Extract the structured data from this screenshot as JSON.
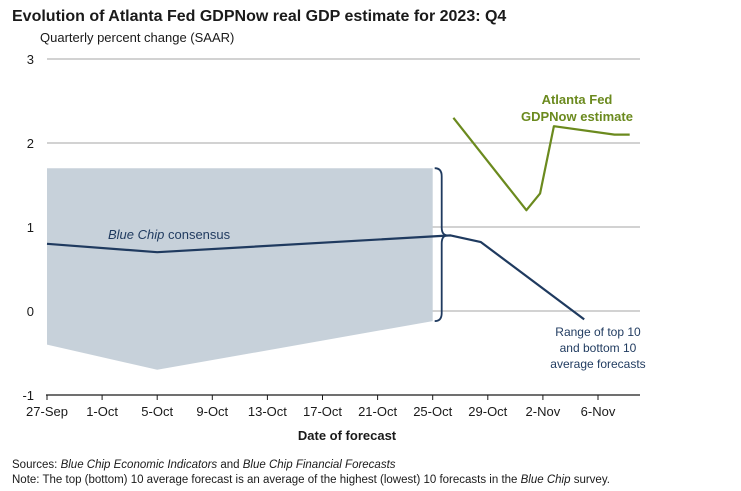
{
  "chart_data": {
    "type": "line",
    "title": "Evolution of Atlanta Fed GDPNow real GDP estimate for 2023: Q4",
    "subtitle": "Quarterly percent change (SAAR)",
    "xlabel": "Date of forecast",
    "ylabel": "",
    "ylim": [
      -1,
      3
    ],
    "y_ticks": [
      "-1",
      "0",
      "1",
      "2",
      "3"
    ],
    "x_ticks": [
      "27-Sep",
      "1-Oct",
      "5-Oct",
      "9-Oct",
      "13-Oct",
      "17-Oct",
      "21-Oct",
      "25-Oct",
      "29-Oct",
      "2-Nov",
      "6-Nov"
    ],
    "x_tick_days": [
      0,
      4,
      8,
      12,
      16,
      20,
      24,
      28,
      32,
      36,
      40
    ],
    "xlim_days": [
      0,
      43
    ],
    "grid": true,
    "series": [
      {
        "name": "Atlanta Fed GDPNow estimate",
        "color": "#6b8a1e",
        "points": [
          {
            "day": 29.5,
            "value": 2.3
          },
          {
            "day": 34.8,
            "value": 1.2
          },
          {
            "day": 35.8,
            "value": 1.4
          },
          {
            "day": 36.8,
            "value": 2.2
          },
          {
            "day": 41.2,
            "value": 2.1
          },
          {
            "day": 42.3,
            "value": 2.1
          }
        ]
      },
      {
        "name": "Blue Chip consensus",
        "color": "#1f3a5f",
        "points": [
          {
            "day": 0,
            "value": 0.8
          },
          {
            "day": 8,
            "value": 0.7
          },
          {
            "day": 29.3,
            "value": 0.9
          },
          {
            "day": 31.5,
            "value": 0.82
          },
          {
            "day": 39,
            "value": -0.1
          }
        ]
      }
    ],
    "range_band": {
      "name": "Range of top 10 and bottom 10 average forecasts",
      "color": "#c7d1da",
      "upper": [
        {
          "day": 0,
          "value": 1.7
        },
        {
          "day": 28,
          "value": 1.7
        }
      ],
      "lower": [
        {
          "day": 0,
          "value": -0.4
        },
        {
          "day": 8,
          "value": -0.7
        },
        {
          "day": 28,
          "value": -0.12
        }
      ]
    },
    "annotations": {
      "gdpnow_line1": "Atlanta Fed",
      "gdpnow_line2": "GDPNow estimate",
      "bluechip_italic": "Blue Chip",
      "bluechip_rest": " consensus",
      "range_line1": "Range of top 10",
      "range_line2": "and bottom 10",
      "range_line3": "average forecasts"
    }
  },
  "footer": {
    "sources_label": "Sources: ",
    "sources_italic1": "Blue Chip Economic Indicators",
    "sources_mid": " and ",
    "sources_italic2": "Blue Chip Financial Forecasts",
    "note_label": "Note: ",
    "note_text_a": "The top (bottom) 10 average forecast is an average of the highest (lowest) 10 forecasts in the ",
    "note_italic": "Blue Chip",
    "note_text_b": " survey."
  }
}
